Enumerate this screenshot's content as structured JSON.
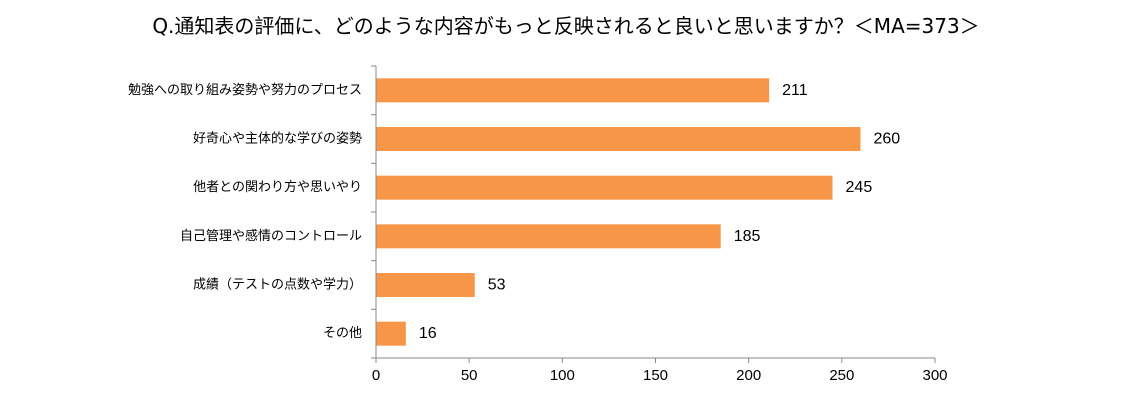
{
  "chart_data": {
    "type": "bar",
    "orientation": "horizontal",
    "title": "Q.通知表の評価に、どのような内容がもっと反映されると良いと思いますか？＜MA=373＞",
    "categories": [
      "勉強への取り組み姿勢や努力のプロセス",
      "好奇心や主体的な学びの姿勢",
      "他者との関わり方や思いやり",
      "自己管理や感情のコントロール",
      "成績（テストの点数や学力）",
      "その他"
    ],
    "values": [
      211,
      260,
      245,
      185,
      53,
      16
    ],
    "xlim": [
      0,
      300
    ],
    "xticks": [
      0,
      50,
      100,
      150,
      200,
      250,
      300
    ],
    "xlabel": "",
    "ylabel": "",
    "grid": false,
    "legend": "none",
    "bar_color": "#F79646"
  }
}
